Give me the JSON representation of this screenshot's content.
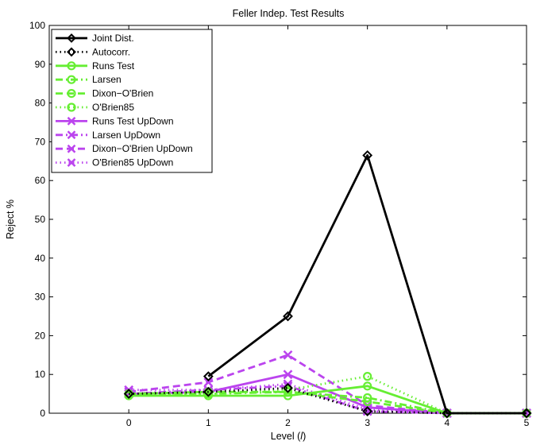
{
  "chart_data": {
    "type": "line",
    "title": "Feller Indep. Test Results",
    "xlabel_prefix": "Level (",
    "xlabel_var": "l",
    "xlabel_suffix": ")",
    "ylabel": "Reject %",
    "xlim": [
      -1,
      5
    ],
    "ylim": [
      0,
      100
    ],
    "xticks": [
      0,
      1,
      2,
      3,
      4,
      5
    ],
    "yticks": [
      0,
      10,
      20,
      30,
      40,
      50,
      60,
      70,
      80,
      90,
      100
    ],
    "grid": false,
    "legend_position": "top-left",
    "x": [
      0,
      1,
      2,
      3,
      4,
      5
    ],
    "series": [
      {
        "name": "Joint Dist.",
        "color": "#000000",
        "dash": "solid",
        "marker": "diamond",
        "x": [
          1,
          2,
          3,
          4,
          5
        ],
        "values": [
          9.5,
          25,
          66.5,
          0,
          0
        ]
      },
      {
        "name": "Autocorr.",
        "color": "#000000",
        "dash": "dotted",
        "marker": "diamond",
        "x": [
          0,
          1,
          2,
          3,
          4,
          5
        ],
        "values": [
          5,
          5.5,
          6.5,
          0.5,
          0,
          0
        ]
      },
      {
        "name": "Runs Test",
        "color": "#66ee33",
        "dash": "solid",
        "marker": "circle",
        "x": [
          0,
          1,
          2,
          3,
          4,
          5
        ],
        "values": [
          4.5,
          4.5,
          4.5,
          7,
          0,
          0
        ]
      },
      {
        "name": "Larsen",
        "color": "#66ee33",
        "dash": "dashdot",
        "marker": "circle",
        "x": [
          0,
          1,
          2,
          3,
          4,
          5
        ],
        "values": [
          5,
          5,
          5.5,
          4,
          0,
          0
        ]
      },
      {
        "name": "Dixon−O'Brien",
        "color": "#66ee33",
        "dash": "dashed",
        "marker": "circle",
        "x": [
          0,
          1,
          2,
          3,
          4,
          5
        ],
        "values": [
          5,
          5.5,
          5.5,
          3,
          0,
          0
        ]
      },
      {
        "name": "O'Brien85",
        "color": "#66ee33",
        "dash": "dotted",
        "marker": "circle",
        "x": [
          0,
          1,
          2,
          3,
          4,
          5
        ],
        "values": [
          5,
          5,
          6,
          9.5,
          0,
          0
        ]
      },
      {
        "name": "Runs Test UpDown",
        "color": "#bb44ee",
        "dash": "solid",
        "marker": "x",
        "x": [
          0,
          1,
          2,
          3,
          4,
          5
        ],
        "values": [
          5,
          5.5,
          10,
          1.5,
          0,
          0
        ]
      },
      {
        "name": "Larsen UpDown",
        "color": "#bb44ee",
        "dash": "dashdot",
        "marker": "x",
        "x": [
          0,
          1,
          2,
          3,
          4,
          5
        ],
        "values": [
          5,
          6,
          7,
          0.5,
          0,
          0
        ]
      },
      {
        "name": "Dixon−O'Brien UpDown",
        "color": "#bb44ee",
        "dash": "dashed",
        "marker": "x",
        "x": [
          0,
          1,
          2,
          3,
          4,
          5
        ],
        "values": [
          5.5,
          8,
          15,
          2,
          0,
          0
        ]
      },
      {
        "name": "O'Brien85 UpDown",
        "color": "#bb44ee",
        "dash": "dotted",
        "marker": "x",
        "x": [
          0,
          1,
          2,
          3,
          4,
          5
        ],
        "values": [
          6,
          6,
          7.5,
          1,
          0,
          0
        ]
      }
    ]
  }
}
